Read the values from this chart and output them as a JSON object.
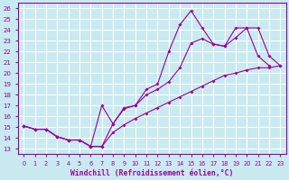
{
  "xlabel": "Windchill (Refroidissement éolien,°C)",
  "background_color": "#c8eaf0",
  "grid_color": "#ffffff",
  "line_color": "#990099",
  "xlim": [
    -0.5,
    23.5
  ],
  "ylim": [
    12.5,
    26.5
  ],
  "yticks": [
    13,
    14,
    15,
    16,
    17,
    18,
    19,
    20,
    21,
    22,
    23,
    24,
    25,
    26
  ],
  "xticks": [
    0,
    1,
    2,
    3,
    4,
    5,
    6,
    7,
    8,
    9,
    10,
    11,
    12,
    13,
    14,
    15,
    16,
    17,
    18,
    19,
    20,
    21,
    22,
    23
  ],
  "line1_x": [
    0,
    1,
    2,
    3,
    4,
    5,
    6,
    7,
    8,
    9,
    10,
    11,
    12,
    13,
    14,
    15,
    16,
    17,
    18,
    19,
    20,
    21,
    22,
    23
  ],
  "line1_y": [
    15.1,
    14.8,
    14.8,
    14.1,
    13.8,
    13.8,
    13.2,
    17.0,
    15.3,
    16.8,
    17.0,
    18.5,
    19.0,
    22.0,
    24.5,
    25.8,
    24.2,
    22.7,
    22.5,
    24.2,
    24.2,
    21.6,
    20.7,
    null
  ],
  "line2_x": [
    0,
    1,
    2,
    3,
    4,
    5,
    6,
    7,
    8,
    9,
    10,
    11,
    12,
    13,
    14,
    15,
    16,
    17,
    18,
    19,
    20,
    21,
    22,
    23
  ],
  "line2_y": [
    15.1,
    14.8,
    14.8,
    14.1,
    13.8,
    13.8,
    13.2,
    13.2,
    15.3,
    16.7,
    17.0,
    18.0,
    18.5,
    19.2,
    20.5,
    22.8,
    23.2,
    22.7,
    22.5,
    23.3,
    24.2,
    24.2,
    21.6,
    20.7
  ],
  "line3_x": [
    0,
    1,
    2,
    3,
    4,
    5,
    6,
    7,
    8,
    9,
    10,
    11,
    12,
    13,
    14,
    15,
    16,
    17,
    18,
    19,
    20,
    21,
    22,
    23
  ],
  "line3_y": [
    15.1,
    14.8,
    14.8,
    14.1,
    13.8,
    13.8,
    13.2,
    13.2,
    14.5,
    15.2,
    15.8,
    16.3,
    16.8,
    17.3,
    17.8,
    18.3,
    18.8,
    19.3,
    19.8,
    20.0,
    20.3,
    20.5,
    20.5,
    20.7
  ]
}
